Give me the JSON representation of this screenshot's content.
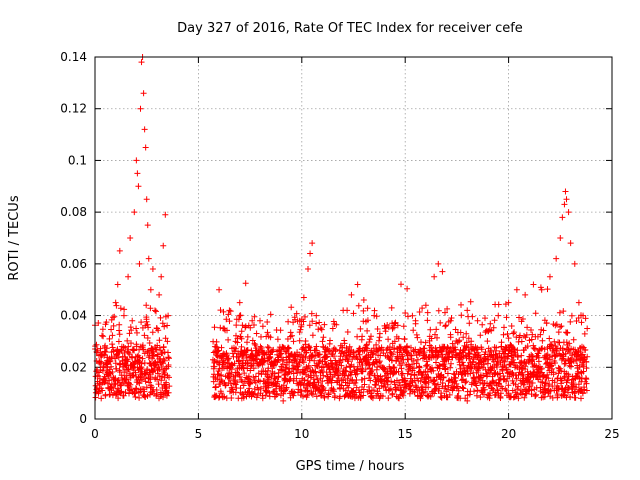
{
  "chart_data": {
    "type": "scatter",
    "title": "Day 327 of 2016, Rate Of TEC Index for receiver cefe",
    "xlabel": "GPS time / hours",
    "ylabel": "ROTI / TECUs",
    "xlim": [
      0,
      25
    ],
    "ylim": [
      0,
      0.14
    ],
    "xticks": [
      0,
      5,
      10,
      15,
      20,
      25
    ],
    "xtick_labels": [
      "0",
      "5",
      "10",
      "15",
      "20",
      "25"
    ],
    "yticks": [
      0,
      0.02,
      0.04,
      0.06,
      0.08,
      0.1,
      0.12,
      0.14
    ],
    "ytick_labels": [
      "0",
      "0.02",
      "0.04",
      "0.06",
      "0.08",
      "0.1",
      "0.12",
      "0.14"
    ],
    "grid": true,
    "marker": "plus",
    "marker_color": "#ff0000",
    "series": [
      {
        "name": "ROTI",
        "points": [
          [
            0.1,
            0.012
          ],
          [
            0.2,
            0.018
          ],
          [
            0.3,
            0.022
          ],
          [
            0.4,
            0.015
          ],
          [
            0.5,
            0.009
          ],
          [
            0.6,
            0.02
          ],
          [
            0.7,
            0.031
          ],
          [
            0.8,
            0.024
          ],
          [
            0.9,
            0.036
          ],
          [
            1.0,
            0.045
          ],
          [
            1.1,
            0.052
          ],
          [
            1.2,
            0.065
          ],
          [
            1.3,
            0.028
          ],
          [
            1.4,
            0.04
          ],
          [
            1.5,
            0.019
          ],
          [
            1.6,
            0.055
          ],
          [
            1.7,
            0.07
          ],
          [
            1.8,
            0.038
          ],
          [
            1.9,
            0.08
          ],
          [
            2.0,
            0.1
          ],
          [
            2.05,
            0.095
          ],
          [
            2.1,
            0.09
          ],
          [
            2.15,
            0.06
          ],
          [
            2.2,
            0.12
          ],
          [
            2.25,
            0.138
          ],
          [
            2.3,
            0.14
          ],
          [
            2.35,
            0.126
          ],
          [
            2.4,
            0.112
          ],
          [
            2.45,
            0.105
          ],
          [
            2.5,
            0.085
          ],
          [
            2.55,
            0.075
          ],
          [
            2.6,
            0.062
          ],
          [
            2.7,
            0.05
          ],
          [
            2.8,
            0.058
          ],
          [
            2.9,
            0.042
          ],
          [
            3.0,
            0.035
          ],
          [
            3.1,
            0.048
          ],
          [
            3.2,
            0.055
          ],
          [
            3.3,
            0.067
          ],
          [
            3.4,
            0.079
          ],
          [
            3.5,
            0.03
          ],
          [
            0.3,
            0.008
          ],
          [
            0.8,
            0.012
          ],
          [
            1.2,
            0.014
          ],
          [
            1.7,
            0.011
          ],
          [
            2.2,
            0.016
          ],
          [
            2.7,
            0.013
          ],
          [
            3.2,
            0.015
          ],
          [
            5.8,
            0.028
          ],
          [
            6.0,
            0.05
          ],
          [
            6.2,
            0.035
          ],
          [
            6.5,
            0.042
          ],
          [
            6.8,
            0.03
          ],
          [
            7.0,
            0.045
          ],
          [
            7.3,
            0.025
          ],
          [
            7.6,
            0.038
          ],
          [
            8.0,
            0.028
          ],
          [
            8.4,
            0.032
          ],
          [
            8.8,
            0.022
          ],
          [
            9.2,
            0.026
          ],
          [
            9.6,
            0.03
          ],
          [
            9.9,
            0.038
          ],
          [
            10.1,
            0.047
          ],
          [
            10.3,
            0.058
          ],
          [
            10.4,
            0.064
          ],
          [
            10.5,
            0.068
          ],
          [
            10.7,
            0.04
          ],
          [
            11.0,
            0.03
          ],
          [
            11.5,
            0.035
          ],
          [
            12.0,
            0.042
          ],
          [
            12.4,
            0.048
          ],
          [
            12.7,
            0.052
          ],
          [
            13.0,
            0.046
          ],
          [
            13.5,
            0.04
          ],
          [
            14.0,
            0.036
          ],
          [
            14.5,
            0.03
          ],
          [
            15.0,
            0.041
          ],
          [
            15.5,
            0.038
          ],
          [
            16.0,
            0.044
          ],
          [
            16.4,
            0.055
          ],
          [
            16.6,
            0.06
          ],
          [
            16.8,
            0.057
          ],
          [
            17.2,
            0.038
          ],
          [
            17.6,
            0.03
          ],
          [
            18.0,
            0.042
          ],
          [
            18.5,
            0.038
          ],
          [
            19.0,
            0.034
          ],
          [
            19.5,
            0.04
          ],
          [
            20.0,
            0.045
          ],
          [
            20.4,
            0.05
          ],
          [
            20.8,
            0.048
          ],
          [
            21.2,
            0.052
          ],
          [
            21.6,
            0.05
          ],
          [
            22.0,
            0.055
          ],
          [
            22.3,
            0.062
          ],
          [
            22.5,
            0.07
          ],
          [
            22.6,
            0.078
          ],
          [
            22.7,
            0.083
          ],
          [
            22.75,
            0.088
          ],
          [
            22.8,
            0.085
          ],
          [
            22.9,
            0.08
          ],
          [
            23.0,
            0.068
          ],
          [
            23.2,
            0.06
          ],
          [
            23.4,
            0.045
          ],
          [
            23.6,
            0.04
          ],
          [
            23.8,
            0.035
          ],
          [
            6.1,
            0.01
          ],
          [
            7.1,
            0.008
          ],
          [
            8.1,
            0.009
          ],
          [
            9.1,
            0.007
          ],
          [
            10.2,
            0.012
          ],
          [
            11.3,
            0.01
          ],
          [
            12.5,
            0.011
          ],
          [
            13.6,
            0.009
          ],
          [
            14.7,
            0.008
          ],
          [
            15.8,
            0.01
          ],
          [
            16.9,
            0.009
          ],
          [
            18.0,
            0.007
          ],
          [
            19.1,
            0.01
          ],
          [
            20.2,
            0.011
          ],
          [
            21.3,
            0.009
          ],
          [
            22.4,
            0.012
          ],
          [
            23.5,
            0.008
          ]
        ]
      }
    ]
  }
}
